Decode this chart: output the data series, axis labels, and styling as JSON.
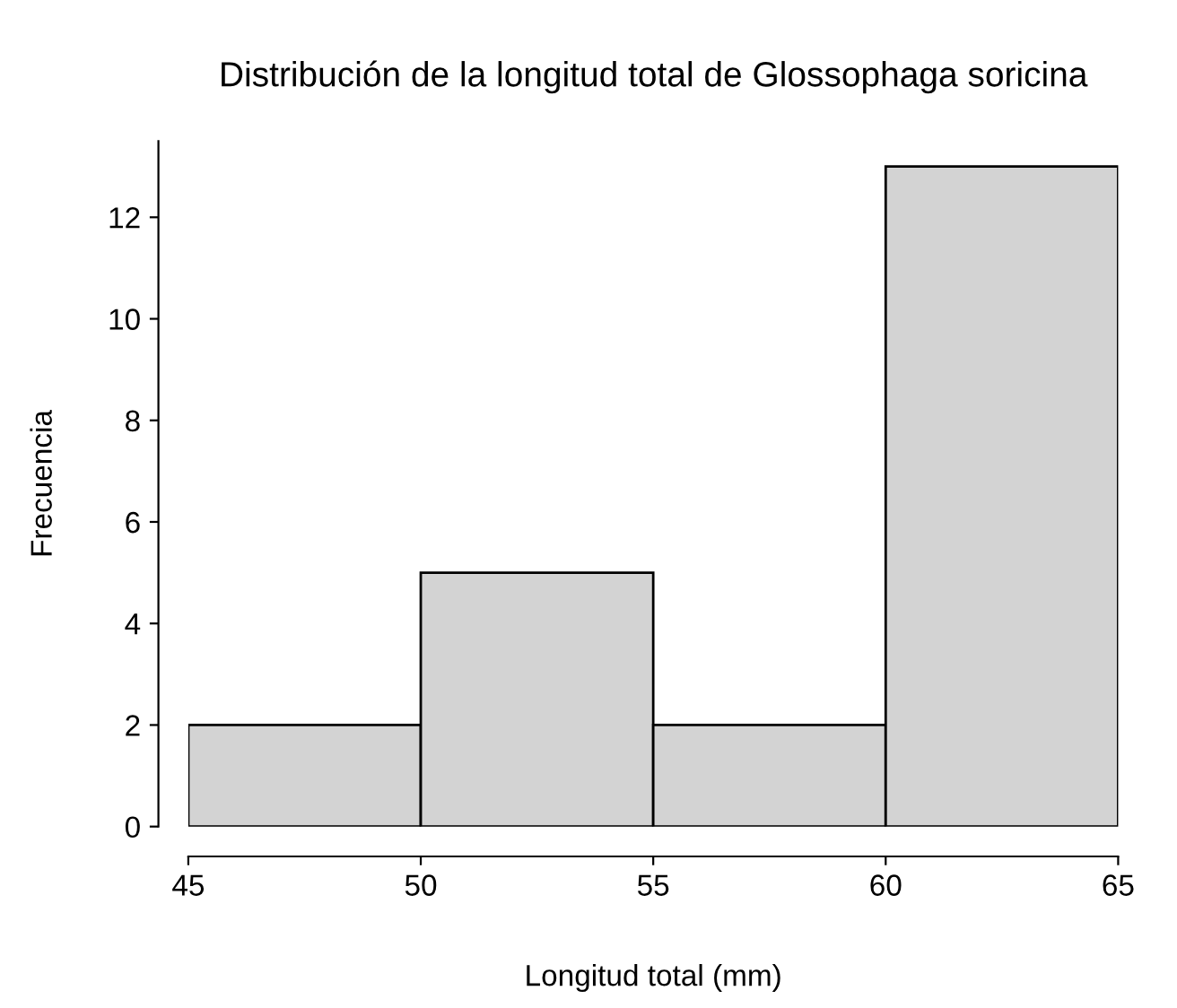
{
  "chart_data": {
    "type": "histogram",
    "title": "Distribución de la longitud total de Glossophaga soricina",
    "xlabel": "Longitud total (mm)",
    "ylabel": "Frecuencia",
    "bins": [
      45,
      50,
      55,
      60,
      65
    ],
    "values": [
      2,
      5,
      2,
      13
    ],
    "color": "#d3d3d3",
    "xlim": [
      45,
      65
    ],
    "xticks": [
      45,
      50,
      55,
      60,
      65
    ],
    "ylim": [
      0,
      13.5
    ],
    "yticks": [
      0,
      2,
      4,
      6,
      8,
      10,
      12
    ],
    "grid": false,
    "legend": false
  }
}
